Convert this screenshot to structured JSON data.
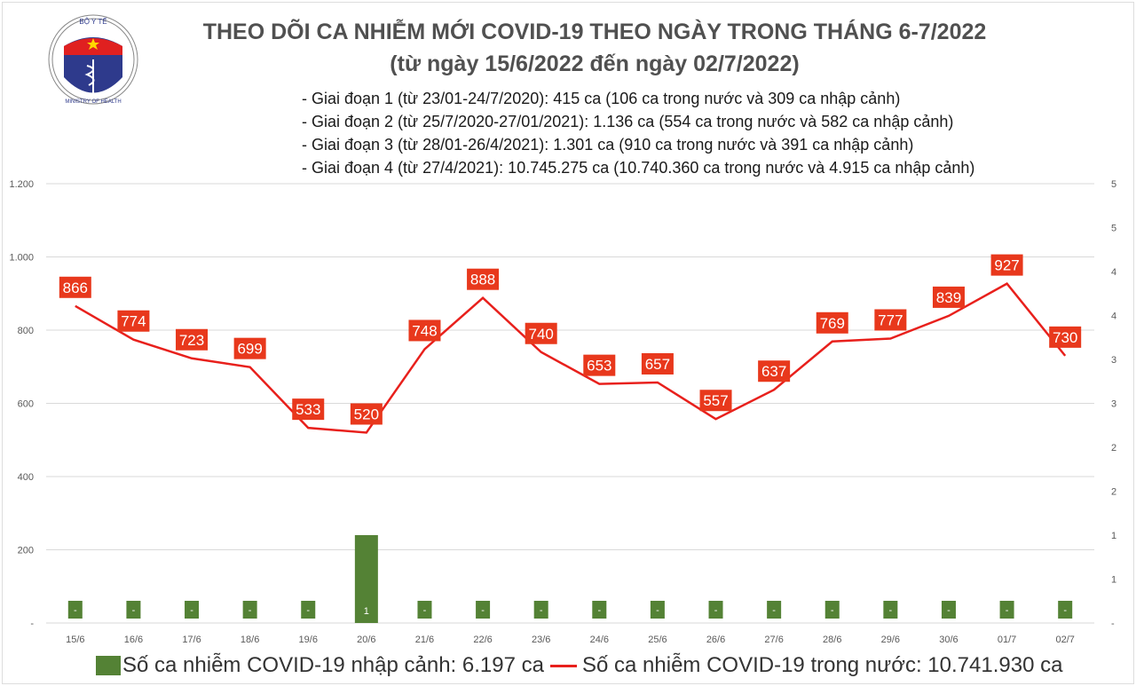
{
  "title": "THEO DÕI CA NHIỄM MỚI COVID-19 THEO NGÀY TRONG THÁNG 6-7/2022",
  "subtitle": "(từ ngày 15/6/2022 đến ngày 02/7/2022)",
  "notes": [
    "- Giai đoạn 1 (từ 23/01-24/7/2020): 415 ca (106 ca trong nước và 309 ca nhập cảnh)",
    "- Giai đoạn 2 (từ 25/7/2020-27/01/2021): 1.136 ca (554 ca trong nước và 582 ca nhập cảnh)",
    "- Giai đoạn 3 (từ 28/01-26/4/2021): 1.301 ca (910 ca trong nước và 391 ca nhập cảnh)",
    "- Giai đoạn 4 (từ 27/4/2021): 10.745.275 ca (10.740.360 ca trong nước và 4.915 ca nhập cảnh)"
  ],
  "logo": {
    "top_text": "BỘ Y TẾ",
    "bottom_text": "MINISTRY OF HEALTH"
  },
  "chart_data": {
    "type": "bar+line",
    "categories": [
      "15/6",
      "16/6",
      "17/6",
      "18/6",
      "19/6",
      "20/6",
      "21/6",
      "22/6",
      "23/6",
      "24/6",
      "25/6",
      "26/6",
      "27/6",
      "28/6",
      "29/6",
      "30/6",
      "01/7",
      "02/7"
    ],
    "series": [
      {
        "name": "Số ca nhiễm COVID-19 nhập cảnh: 6.197 ca",
        "type": "bar",
        "axis": "right",
        "color": "#548235",
        "values": [
          0,
          0,
          0,
          0,
          0,
          1,
          0,
          0,
          0,
          0,
          0,
          0,
          0,
          0,
          0,
          0,
          0,
          0
        ]
      },
      {
        "name": "Số ca nhiễm COVID-19 trong nước: 10.741.930 ca",
        "type": "line",
        "axis": "left",
        "color": "#e8201c",
        "values": [
          866,
          774,
          723,
          699,
          533,
          520,
          748,
          888,
          740,
          653,
          657,
          557,
          637,
          769,
          777,
          839,
          927,
          730
        ]
      }
    ],
    "left_axis": {
      "range": [
        0,
        1200
      ],
      "ticks": [
        "-",
        "200",
        "400",
        "600",
        "800",
        "1.000",
        "1.200"
      ]
    },
    "right_axis": {
      "range": [
        0,
        5
      ],
      "ticks": [
        "-",
        "1",
        "1",
        "2",
        "2",
        "3",
        "3",
        "4",
        "4",
        "5",
        "5"
      ]
    },
    "grid": true,
    "legend_placement": "bottom",
    "label_color": "#e8381c"
  }
}
